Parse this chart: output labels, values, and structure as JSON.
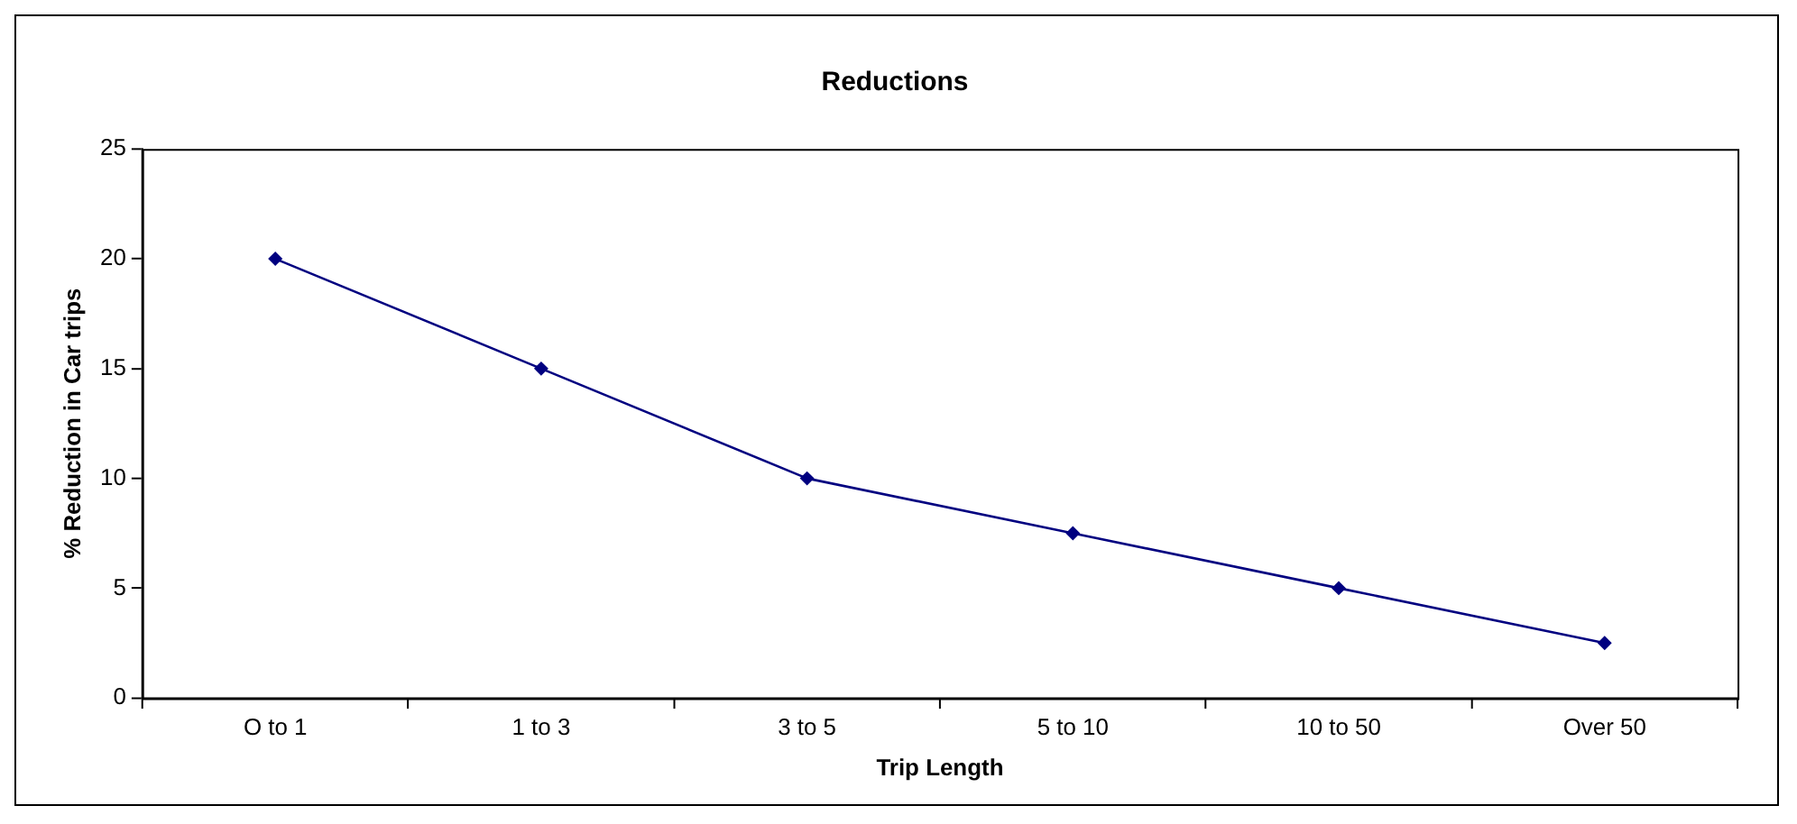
{
  "chart_data": {
    "type": "line",
    "title": "Reductions",
    "xlabel": "Trip Length",
    "ylabel": "% Reduction in Car trips",
    "categories": [
      "O to 1",
      "1 to 3",
      "3 to 5",
      "5 to 10",
      "10 to 50",
      "Over 50"
    ],
    "series": [
      {
        "color": "#000080",
        "values": [
          20,
          15,
          10,
          7.5,
          5,
          2.5
        ]
      }
    ],
    "ylim": [
      0,
      25
    ],
    "yticks": [
      0,
      5,
      10,
      15,
      20,
      25
    ],
    "grid": false,
    "legend": false,
    "marker": "diamond",
    "line_style": "solid"
  }
}
